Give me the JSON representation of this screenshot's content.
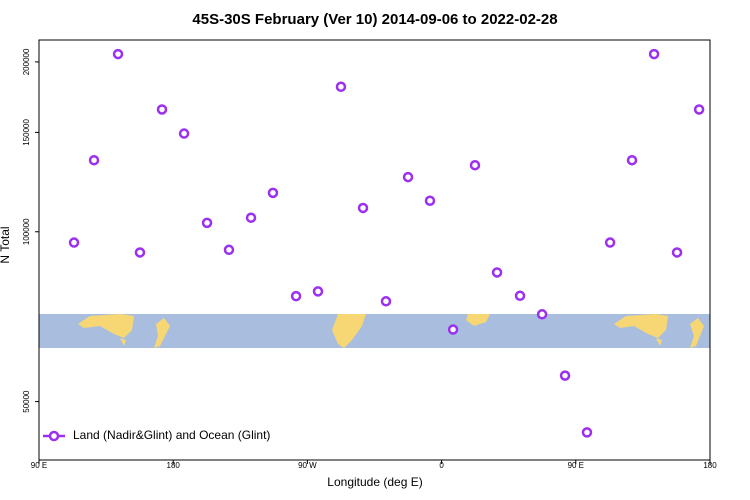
{
  "chart_data": {
    "type": "scatter",
    "title": "45S-30S February (Ver 10)   2014-09-06 to 2022-02-28",
    "x_label": "Longitude (deg E)",
    "y_label": "N Total",
    "xlim": [
      90,
      540
    ],
    "ylim": [
      39400,
      218700
    ],
    "ylog": true,
    "xticks": [
      {
        "value": 90,
        "label": "90 E"
      },
      {
        "value": 180,
        "label": "180"
      },
      {
        "value": 270,
        "label": "90 W"
      },
      {
        "value": 360,
        "label": "0"
      },
      {
        "value": 450,
        "label": "90 E"
      },
      {
        "value": 540,
        "label": "180"
      }
    ],
    "yticks": [
      50000,
      100000,
      150000,
      200000
    ],
    "legend_position": "bottom-left",
    "series": [
      {
        "name": "Land (Nadir&Glint) and Ocean (Glint)",
        "color": "#9b30f0",
        "x": [
          113.5,
          126.9,
          143.0,
          157.7,
          172.5,
          187.3,
          202.7,
          217.4,
          232.2,
          246.9,
          262.4,
          277.1,
          292.5,
          307.3,
          322.7,
          337.5,
          352.2,
          367.7,
          382.4,
          397.2,
          412.6,
          427.4,
          442.8,
          457.5,
          473.0,
          487.7,
          502.5,
          517.9,
          532.7
        ],
        "values": [
          95700,
          133900,
          206500,
          91900,
          164700,
          149300,
          103700,
          92900,
          105900,
          117200,
          76900,
          78400,
          180700,
          110200,
          75300,
          125000,
          113500,
          67100,
          131200,
          84700,
          77000,
          71400,
          55600,
          44100,
          95700,
          133900,
          206500,
          91900,
          164700
        ]
      }
    ]
  }
}
